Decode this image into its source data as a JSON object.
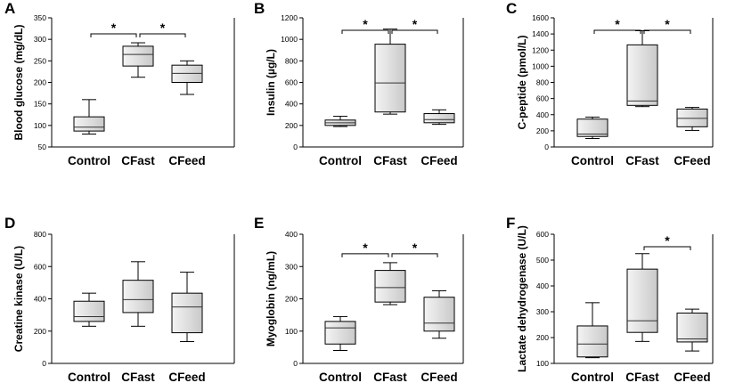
{
  "chart_data": [
    {
      "panel": "A",
      "type": "box",
      "ylabel": "Blood glucose (mg/dL)",
      "categories": [
        "Control",
        "CFast",
        "CFeed"
      ],
      "ylim": [
        50,
        350
      ],
      "yticks": [
        50,
        100,
        150,
        200,
        250,
        300,
        350
      ],
      "boxes": [
        {
          "min": 80,
          "q1": 87,
          "median": 96,
          "q3": 120,
          "max": 160
        },
        {
          "min": 212,
          "q1": 238,
          "median": 265,
          "q3": 284,
          "max": 292
        },
        {
          "min": 172,
          "q1": 200,
          "median": 221,
          "q3": 240,
          "max": 250
        }
      ],
      "significance": [
        {
          "from": 0,
          "to": 1,
          "label": "*"
        },
        {
          "from": 1,
          "to": 2,
          "label": "*"
        }
      ]
    },
    {
      "panel": "B",
      "type": "box",
      "ylabel": "Insulin (µg/L)",
      "categories": [
        "Control",
        "CFast",
        "CFeed"
      ],
      "ylim": [
        0,
        1200
      ],
      "yticks": [
        0,
        200,
        400,
        600,
        800,
        1000,
        1200
      ],
      "boxes": [
        {
          "min": 190,
          "q1": 200,
          "median": 225,
          "q3": 250,
          "max": 285
        },
        {
          "min": 305,
          "q1": 325,
          "median": 595,
          "q3": 955,
          "max": 1095
        },
        {
          "min": 210,
          "q1": 225,
          "median": 255,
          "q3": 310,
          "max": 345
        }
      ],
      "significance": [
        {
          "from": 0,
          "to": 1,
          "label": "*"
        },
        {
          "from": 1,
          "to": 2,
          "label": "*"
        }
      ]
    },
    {
      "panel": "C",
      "type": "box",
      "ylabel": "C-peptide (pmol/L)",
      "categories": [
        "Control",
        "CFast",
        "CFeed"
      ],
      "ylim": [
        0,
        1600
      ],
      "yticks": [
        0,
        200,
        400,
        600,
        800,
        1000,
        1200,
        1400,
        1600
      ],
      "boxes": [
        {
          "min": 105,
          "q1": 130,
          "median": 160,
          "q3": 345,
          "max": 370
        },
        {
          "min": 500,
          "q1": 515,
          "median": 570,
          "q3": 1265,
          "max": 1440
        },
        {
          "min": 205,
          "q1": 250,
          "median": 355,
          "q3": 470,
          "max": 490
        }
      ],
      "significance": [
        {
          "from": 0,
          "to": 1,
          "label": "*"
        },
        {
          "from": 1,
          "to": 2,
          "label": "*"
        }
      ]
    },
    {
      "panel": "D",
      "type": "box",
      "ylabel": "Creatine kinase (U/L)",
      "categories": [
        "Control",
        "CFast",
        "CFeed"
      ],
      "ylim": [
        0,
        800
      ],
      "yticks": [
        0,
        200,
        400,
        600,
        800
      ],
      "boxes": [
        {
          "min": 230,
          "q1": 260,
          "median": 290,
          "q3": 385,
          "max": 435
        },
        {
          "min": 230,
          "q1": 315,
          "median": 395,
          "q3": 515,
          "max": 630
        },
        {
          "min": 135,
          "q1": 190,
          "median": 350,
          "q3": 435,
          "max": 565
        }
      ],
      "significance": []
    },
    {
      "panel": "E",
      "type": "box",
      "ylabel": "Myoglobin (ng/mL)",
      "categories": [
        "Control",
        "CFast",
        "CFeed"
      ],
      "ylim": [
        0,
        400
      ],
      "yticks": [
        0,
        100,
        200,
        300,
        400
      ],
      "boxes": [
        {
          "min": 40,
          "q1": 60,
          "median": 110,
          "q3": 130,
          "max": 145
        },
        {
          "min": 182,
          "q1": 190,
          "median": 235,
          "q3": 288,
          "max": 312
        },
        {
          "min": 78,
          "q1": 100,
          "median": 125,
          "q3": 205,
          "max": 225
        }
      ],
      "significance": [
        {
          "from": 0,
          "to": 1,
          "label": "*"
        },
        {
          "from": 1,
          "to": 2,
          "label": "*"
        }
      ]
    },
    {
      "panel": "F",
      "type": "box",
      "ylabel": "Lactate dehydrogenase (U/L)",
      "categories": [
        "Control",
        "CFast",
        "CFeed"
      ],
      "ylim": [
        100,
        600
      ],
      "yticks": [
        100,
        200,
        300,
        400,
        500,
        600
      ],
      "boxes": [
        {
          "min": 122,
          "q1": 125,
          "median": 175,
          "q3": 245,
          "max": 335
        },
        {
          "min": 185,
          "q1": 220,
          "median": 265,
          "q3": 465,
          "max": 525
        },
        {
          "min": 148,
          "q1": 183,
          "median": 195,
          "q3": 295,
          "max": 310
        }
      ],
      "significance": [
        {
          "from": 1,
          "to": 2,
          "label": "*"
        }
      ]
    }
  ]
}
